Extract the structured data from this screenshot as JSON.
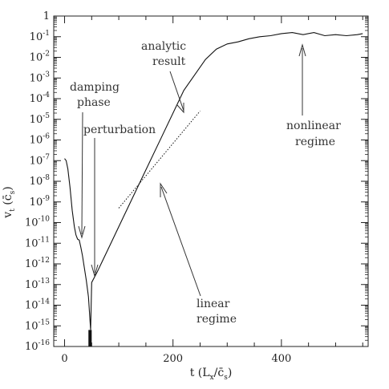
{
  "chart_data": {
    "type": "line",
    "xlabel": "t (L_x/c̄_s)",
    "ylabel": "v_t (c̄_s)",
    "xlim": [
      -20,
      560
    ],
    "ylim_log10": [
      -16,
      0
    ],
    "y_scale": "log",
    "x_ticks": [
      0,
      200,
      400
    ],
    "y_ticks": [
      {
        "exp": 0,
        "base": "1",
        "sup": ""
      },
      {
        "exp": -1,
        "base": "10",
        "sup": "-1"
      },
      {
        "exp": -2,
        "base": "10",
        "sup": "-2"
      },
      {
        "exp": -3,
        "base": "10",
        "sup": "-3"
      },
      {
        "exp": -4,
        "base": "10",
        "sup": "-4"
      },
      {
        "exp": -5,
        "base": "10",
        "sup": "-5"
      },
      {
        "exp": -6,
        "base": "10",
        "sup": "-6"
      },
      {
        "exp": -7,
        "base": "10",
        "sup": "-7"
      },
      {
        "exp": -8,
        "base": "10",
        "sup": "-8"
      },
      {
        "exp": -9,
        "base": "10",
        "sup": "-9"
      },
      {
        "exp": -10,
        "base": "10",
        "sup": "-10"
      },
      {
        "exp": -11,
        "base": "10",
        "sup": "-11"
      },
      {
        "exp": -12,
        "base": "10",
        "sup": "-12"
      },
      {
        "exp": -13,
        "base": "10",
        "sup": "-13"
      },
      {
        "exp": -14,
        "base": "10",
        "sup": "-14"
      },
      {
        "exp": -15,
        "base": "10",
        "sup": "-15"
      },
      {
        "exp": -16,
        "base": "10",
        "sup": "-16"
      }
    ],
    "series": [
      {
        "values_note": "",
        "x": [
          0,
          3,
          6,
          10,
          14,
          18,
          21,
          24,
          27,
          30,
          33,
          36,
          40,
          44,
          48,
          50,
          60,
          80,
          100,
          140,
          180,
          220,
          260,
          280,
          300,
          320,
          340,
          360,
          380,
          400,
          420,
          440,
          460,
          480,
          500,
          520,
          540,
          550
        ],
        "log10_y": [
          -6.9,
          -7.0,
          -7.4,
          -8.3,
          -9.4,
          -10.2,
          -10.6,
          -10.8,
          -10.85,
          -11.2,
          -11.6,
          -12.1,
          -12.8,
          -13.6,
          -15.2,
          -12.9,
          -12.4,
          -11.3,
          -10.2,
          -8.0,
          -5.8,
          -3.6,
          -2.1,
          -1.6,
          -1.35,
          -1.25,
          -1.1,
          -1.0,
          -0.95,
          -0.85,
          -0.8,
          -0.9,
          -0.8,
          -0.95,
          -0.9,
          -0.95,
          -0.9,
          -0.85
        ]
      },
      {
        "style": "dotted",
        "x": [
          100,
          250
        ],
        "log10_y": [
          -9.3,
          -4.6
        ]
      }
    ],
    "annotations": [
      {
        "id": "damping",
        "lines": [
          "damping",
          "phase"
        ]
      },
      {
        "id": "perturbation",
        "lines": [
          "perturbation"
        ]
      },
      {
        "id": "analytic",
        "lines": [
          "analytic",
          "result"
        ]
      },
      {
        "id": "nonlinear",
        "lines": [
          "nonlinear",
          "regime"
        ]
      },
      {
        "id": "linear",
        "lines": [
          "linear",
          "regime"
        ]
      }
    ]
  }
}
